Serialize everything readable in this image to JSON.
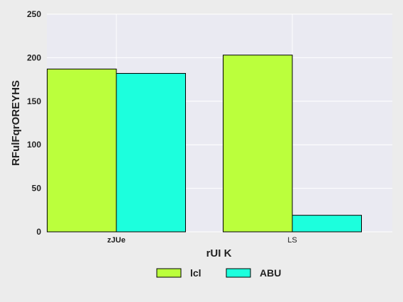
{
  "chart_data": {
    "type": "bar",
    "title": "",
    "xlabel": "rUI K",
    "ylabel": "RFulFqrOREYHS",
    "categories": [
      "zJUe",
      "LS"
    ],
    "category_bold": [
      true,
      false
    ],
    "series": [
      {
        "name": "lcl",
        "values": [
          187,
          203
        ],
        "color": "#bbff3c"
      },
      {
        "name": "ABU",
        "values": [
          182,
          19
        ],
        "color": "#1cffdd"
      }
    ],
    "ylim": [
      0,
      250
    ],
    "yticks": [
      0,
      50,
      100,
      150,
      200,
      250
    ],
    "grid": true,
    "legend_position": "bottom-center",
    "colors": {
      "plot_background": "#eaeaf2",
      "page_background": "#ececec",
      "grid": "#ffffff",
      "bar_edge": "#000000"
    }
  }
}
